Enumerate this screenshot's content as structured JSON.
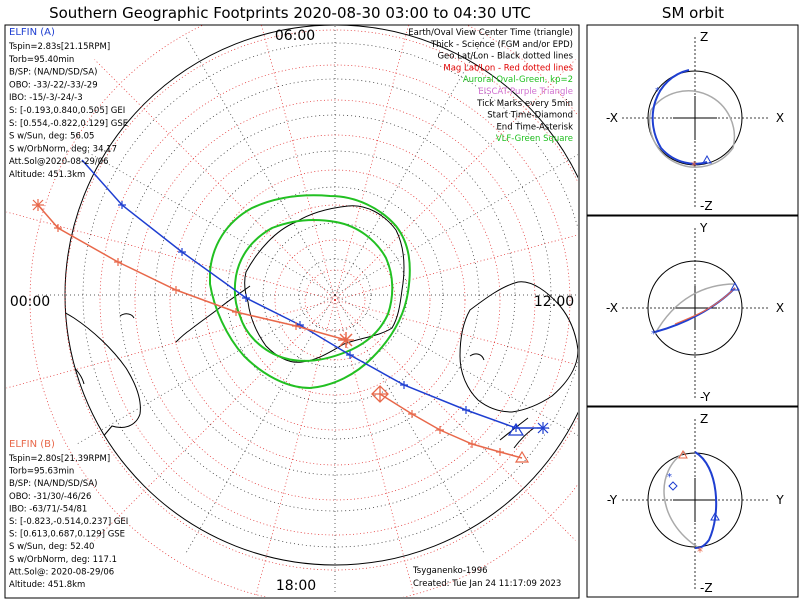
{
  "header": {
    "main_title": "Southern Geographic Footprints 2020-08-30 03:00 to 04:30 UTC",
    "sm_title": "SM orbit"
  },
  "clock_labels": {
    "top": "06:00",
    "left": "00:00",
    "right": "12:00",
    "bottom": "18:00"
  },
  "elfin_a": {
    "title": "ELFIN (A)",
    "color": "#1f3fd1",
    "lines": [
      "Tspin=2.83s[21.15RPM]",
      "Torb=95.40min",
      "B/SP: (NA/ND/SD/SA)",
      "OBO: -33/-22/-33/-29",
      "IBO: -15/-3/-24/-3",
      "S: [-0.193,0.840,0.505] GEI",
      "S: [0.554,-0.822,0.129] GSE",
      "S w/Sun, deg: 56.05",
      "S w/OrbNorm, deg: 34.17",
      "Att.Sol@2020-08-29/06",
      "Altitude: 451.3km"
    ]
  },
  "elfin_b": {
    "title": "ELFIN (B)",
    "color": "#e8684a",
    "lines": [
      "Tspin=2.80s[21.39RPM]",
      "Torb=95.63min",
      "B/SP: (NA/ND/SD/SA)",
      "OBO: -31/30/-46/26",
      "IBO: -63/71/-54/81",
      "S: [-0.823,-0.514,0.237] GEI",
      "S: [0.613,0.687,0.129] GSE",
      "S w/Sun, deg: 52.40",
      "S w/OrbNorm, deg: 117.1",
      "Att.Sol@: 2020-08-29/06",
      "Altitude: 451.8km"
    ]
  },
  "legend": [
    {
      "text": "Earth/Oval View Center Time (triangle)",
      "color": "#000000"
    },
    {
      "text": "Thick - Science (FGM and/or EPD)",
      "color": "#000000"
    },
    {
      "text": "Geo Lat/Lon - Black dotted lines",
      "color": "#000000"
    },
    {
      "text": "Mag Lat/Lon - Red dotted lines",
      "color": "#e00000"
    },
    {
      "text": "Auroral Oval-Green, kp=2",
      "color": "#22c022"
    },
    {
      "text": "EISCAT-Purple Triangle",
      "color": "#d070d0"
    },
    {
      "text": "Tick Marks every 5min",
      "color": "#000000"
    },
    {
      "text": "Start Time-Diamond",
      "color": "#000000"
    },
    {
      "text": "End Time-Asterisk",
      "color": "#000000"
    },
    {
      "text": "VLF-Green Square",
      "color": "#22c022"
    }
  ],
  "credits": {
    "author": "Tsyganenko-1996",
    "created": "Created: Tue Jan 24 11:17:09 2023"
  },
  "sm_panels": [
    {
      "top": "Z",
      "bottom": "-Z",
      "left": "-X",
      "right": "X"
    },
    {
      "top": "Y",
      "bottom": "-Y",
      "left": "-X",
      "right": "X"
    },
    {
      "top": "Z",
      "bottom": "-Z",
      "left": "-Y",
      "right": "Y"
    }
  ],
  "chart_data": {
    "type": "polar-map",
    "center": "South geographic pole",
    "clock_positions": [
      "06:00",
      "00:00",
      "12:00",
      "18:00"
    ],
    "series": [
      {
        "name": "ELFIN (A)",
        "color": "#1f3fd1"
      },
      {
        "name": "ELFIN (B)",
        "color": "#e8684a"
      }
    ]
  }
}
